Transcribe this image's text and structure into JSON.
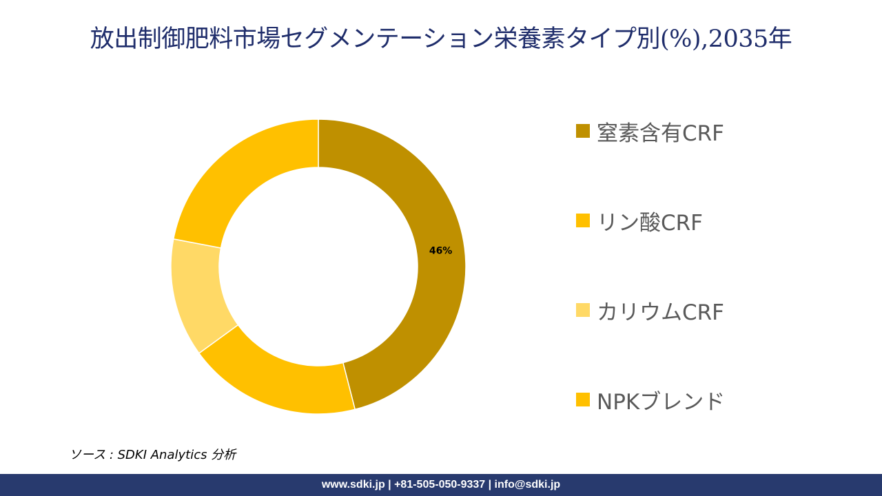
{
  "title": "放出制御肥料市場セグメンテーション栄養素タイプ別(%),2035年",
  "chart_data": {
    "type": "pie",
    "variant": "donut",
    "title": "放出制御肥料市場セグメンテーション栄養素タイプ別(%),2035年",
    "categories": [
      "窒素含有CRF",
      "リン酸CRF",
      "カリウムCRF",
      "NPKブレンド"
    ],
    "values": [
      46,
      19,
      13,
      22
    ],
    "colors": [
      "#bf9000",
      "#ffc000",
      "#ffd966",
      "#ffc000"
    ],
    "data_labels": [
      "46%",
      "",
      "",
      ""
    ],
    "start_angle_deg": 0,
    "direction": "clockwise",
    "legend_position": "right"
  },
  "legend": {
    "items": [
      {
        "label": "窒素含有CRF",
        "color": "#bf9000"
      },
      {
        "label": "リン酸CRF",
        "color": "#ffc000"
      },
      {
        "label": "カリウムCRF",
        "color": "#ffd966"
      },
      {
        "label": "NPKブレンド",
        "color": "#ffc000"
      }
    ]
  },
  "source": "ソース : SDKI Analytics 分析",
  "footer": {
    "text": "www.sdki.jp | +81-505-050-9337 | info@sdki.jp",
    "background": "#283a6e"
  },
  "colors": {
    "title": "#1f2d6b",
    "legend_text": "#595959"
  }
}
